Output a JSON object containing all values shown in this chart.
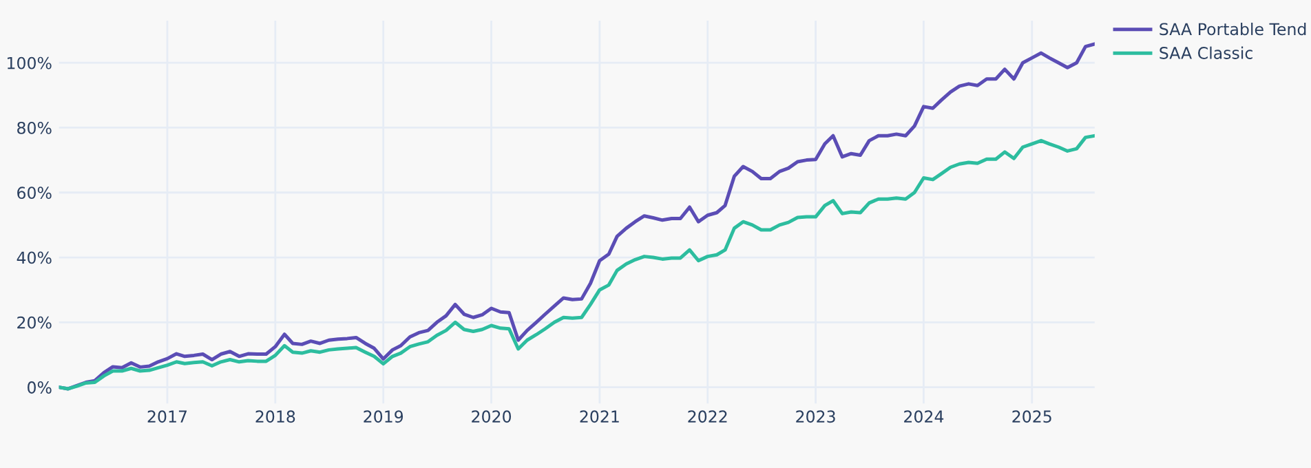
{
  "chart_data": {
    "type": "line",
    "x": [
      "2016-01",
      "2016-02",
      "2016-03",
      "2016-04",
      "2016-05",
      "2016-06",
      "2016-07",
      "2016-08",
      "2016-09",
      "2016-10",
      "2016-11",
      "2016-12",
      "2017-01",
      "2017-02",
      "2017-03",
      "2017-04",
      "2017-05",
      "2017-06",
      "2017-07",
      "2017-08",
      "2017-09",
      "2017-10",
      "2017-11",
      "2017-12",
      "2018-01",
      "2018-02",
      "2018-03",
      "2018-04",
      "2018-05",
      "2018-06",
      "2018-07",
      "2018-08",
      "2018-09",
      "2018-10",
      "2018-11",
      "2018-12",
      "2019-01",
      "2019-02",
      "2019-03",
      "2019-04",
      "2019-05",
      "2019-06",
      "2019-07",
      "2019-08",
      "2019-09",
      "2019-10",
      "2019-11",
      "2019-12",
      "2020-01",
      "2020-02",
      "2020-03",
      "2020-04",
      "2020-05",
      "2020-06",
      "2020-07",
      "2020-08",
      "2020-09",
      "2020-10",
      "2020-11",
      "2020-12",
      "2021-01",
      "2021-02",
      "2021-03",
      "2021-04",
      "2021-05",
      "2021-06",
      "2021-07",
      "2021-08",
      "2021-09",
      "2021-10",
      "2021-11",
      "2021-12",
      "2022-01",
      "2022-02",
      "2022-03",
      "2022-04",
      "2022-05",
      "2022-06",
      "2022-07",
      "2022-08",
      "2022-09",
      "2022-10",
      "2022-11",
      "2022-12",
      "2023-01",
      "2023-02",
      "2023-03",
      "2023-04",
      "2023-05",
      "2023-06",
      "2023-07",
      "2023-08",
      "2023-09",
      "2023-10",
      "2023-11",
      "2023-12",
      "2024-01",
      "2024-02",
      "2024-03",
      "2024-04",
      "2024-05",
      "2024-06",
      "2024-07",
      "2024-08",
      "2024-09",
      "2024-10",
      "2024-11",
      "2024-12",
      "2025-01",
      "2025-02",
      "2025-03",
      "2025-04",
      "2025-05",
      "2025-06",
      "2025-07",
      "2025-08"
    ],
    "series": [
      {
        "name": "SAA Portable Tend",
        "color": "#5b4db5",
        "values": [
          0,
          -0.5,
          0.5,
          1.5,
          2,
          4.5,
          6.3,
          6,
          7.5,
          6.2,
          6.5,
          7.8,
          8.8,
          10.3,
          9.5,
          9.8,
          10.2,
          8.5,
          10.2,
          11,
          9.5,
          10.3,
          10.2,
          10.2,
          12.5,
          16.3,
          13.5,
          13.2,
          14.2,
          13.5,
          14.5,
          14.8,
          15,
          15.3,
          13.5,
          12,
          8.7,
          11.5,
          12.8,
          15.5,
          16.8,
          17.5,
          20,
          22,
          25.5,
          22.5,
          21.5,
          22.3,
          24.3,
          23.2,
          23,
          14.5,
          17.5,
          20,
          22.5,
          25,
          27.5,
          27,
          27.2,
          32,
          39,
          41,
          46.5,
          49,
          51,
          52.8,
          52.2,
          51.5,
          52,
          52,
          55.5,
          51,
          53,
          53.8,
          56,
          65,
          68,
          66.5,
          64.3,
          64.3,
          66.5,
          67.5,
          69.5,
          70,
          70.2,
          75,
          77.5,
          71,
          72,
          71.5,
          76,
          77.5,
          77.5,
          78,
          77.5,
          80.5,
          86.5,
          86,
          88.5,
          91,
          92.8,
          93.5,
          93,
          95,
          95,
          98,
          95,
          100,
          101.5,
          103,
          101.5,
          100,
          98.5,
          100,
          105,
          105.8
        ]
      },
      {
        "name": "SAA Classic",
        "color": "#2dbd9f",
        "values": [
          0,
          -0.5,
          0.3,
          1.3,
          1.5,
          3.5,
          5,
          5,
          5.8,
          5,
          5.2,
          6,
          6.8,
          7.8,
          7.3,
          7.6,
          7.8,
          6.6,
          7.8,
          8.5,
          7.8,
          8.2,
          8,
          8,
          9.8,
          12.8,
          10.8,
          10.5,
          11.2,
          10.8,
          11.5,
          11.8,
          12,
          12.2,
          10.8,
          9.5,
          7.2,
          9.5,
          10.5,
          12.5,
          13.3,
          14,
          16,
          17.5,
          20,
          17.8,
          17.2,
          17.8,
          19,
          18.2,
          18,
          11.8,
          14.5,
          16.2,
          18,
          20,
          21.5,
          21.3,
          21.5,
          25.5,
          30,
          31.5,
          36,
          38,
          39.3,
          40.3,
          40,
          39.5,
          39.8,
          39.8,
          42.3,
          39,
          40.3,
          40.8,
          42.3,
          49,
          51,
          50,
          48.5,
          48.5,
          50,
          50.8,
          52.3,
          52.5,
          52.5,
          56,
          57.5,
          53.5,
          54,
          53.8,
          56.8,
          58,
          58,
          58.3,
          58,
          60,
          64.5,
          64,
          65.8,
          67.8,
          68.8,
          69.3,
          69,
          70.3,
          70.3,
          72.5,
          70.5,
          74,
          75,
          76,
          75,
          74,
          72.8,
          73.5,
          77,
          77.5
        ]
      }
    ],
    "xlim": [
      "2016-01",
      "2025-08"
    ],
    "xticks": [
      {
        "value": "2017-01",
        "label": "2017"
      },
      {
        "value": "2018-01",
        "label": "2018"
      },
      {
        "value": "2019-01",
        "label": "2019"
      },
      {
        "value": "2020-01",
        "label": "2020"
      },
      {
        "value": "2021-01",
        "label": "2021"
      },
      {
        "value": "2022-01",
        "label": "2022"
      },
      {
        "value": "2023-01",
        "label": "2023"
      },
      {
        "value": "2024-01",
        "label": "2024"
      },
      {
        "value": "2025-01",
        "label": "2025"
      }
    ],
    "ylim": [
      -5,
      113
    ],
    "yticks": [
      {
        "value": 0,
        "label": "0%"
      },
      {
        "value": 20,
        "label": "20%"
      },
      {
        "value": 40,
        "label": "40%"
      },
      {
        "value": 60,
        "label": "60%"
      },
      {
        "value": 80,
        "label": "80%"
      },
      {
        "value": 100,
        "label": "100%"
      }
    ],
    "grid": true,
    "legend": "top right",
    "line_style": "solid",
    "marker": "none"
  }
}
